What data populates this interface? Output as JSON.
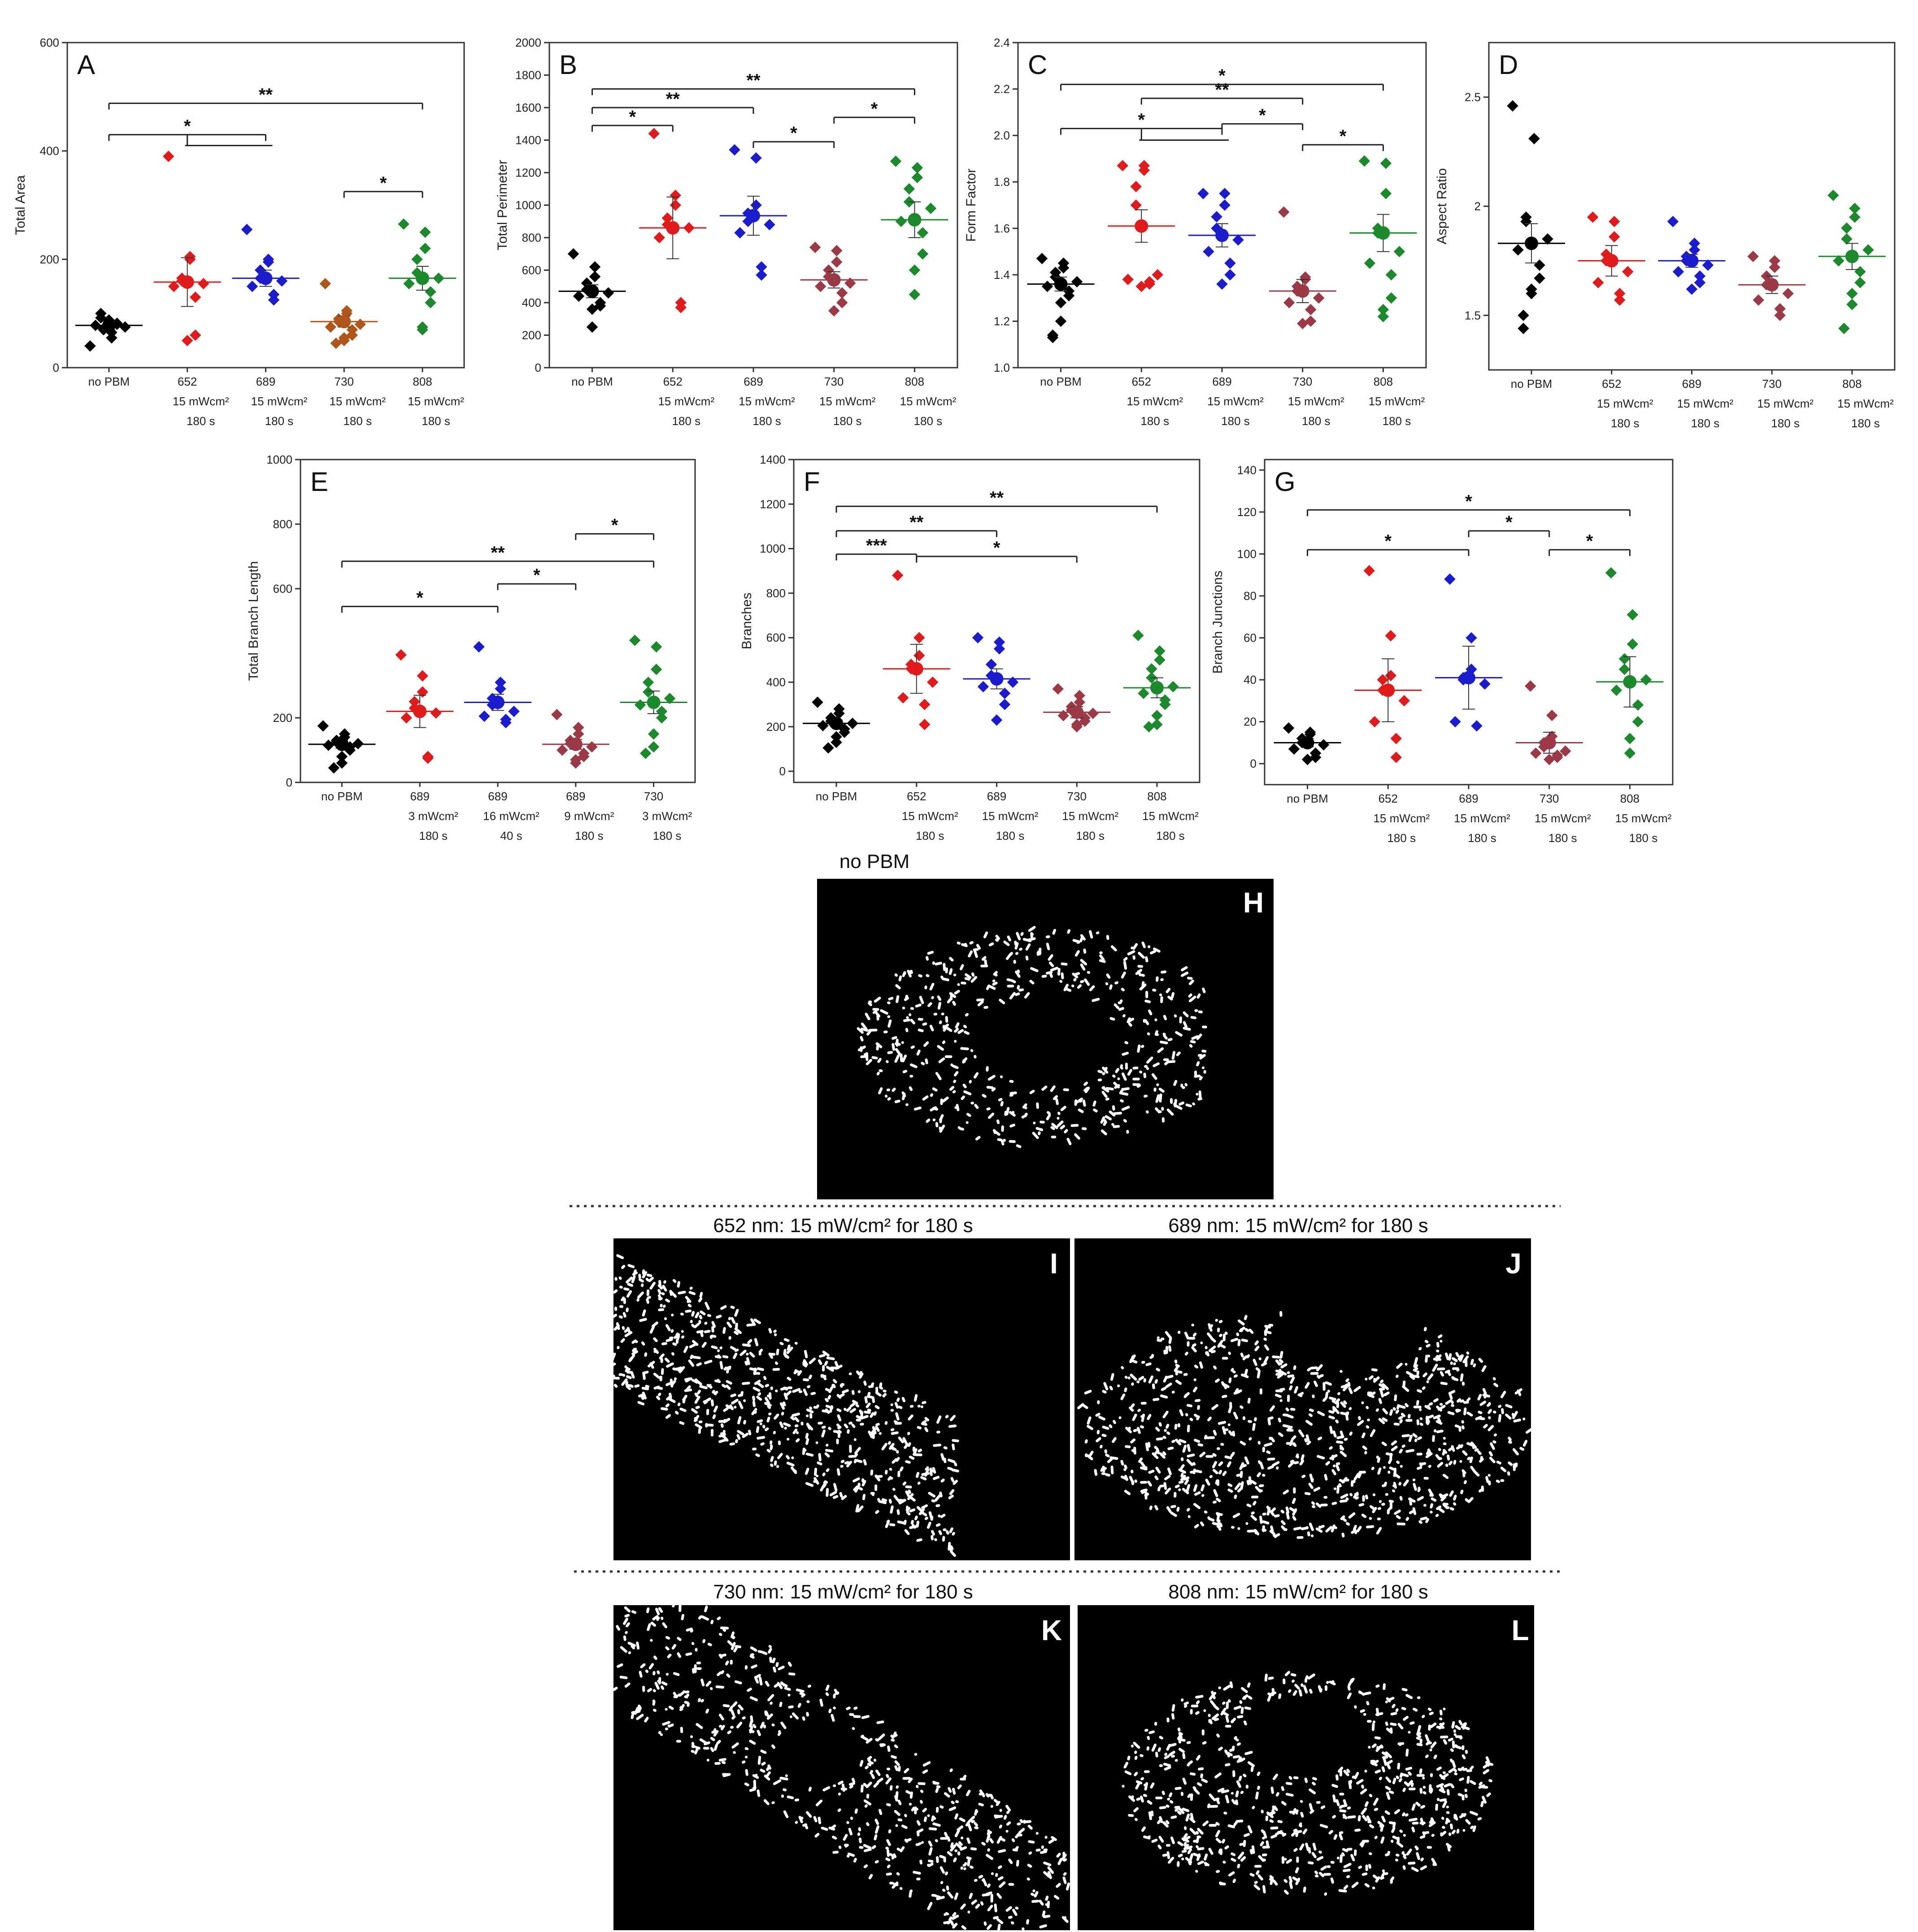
{
  "colors": {
    "black": "#000000",
    "red": "#e11b1b",
    "blue": "#1c1ccf",
    "brown": "#b1561b",
    "maroon": "#9b3a46",
    "green": "#1c8a2c"
  },
  "chart_data": [
    {
      "id": "A",
      "type": "scatter",
      "panel_label": "A",
      "ylabel": "Total Area",
      "ylim": [
        0,
        600
      ],
      "yticks": [
        0,
        200,
        400,
        600
      ],
      "categories": [
        [
          "no PBM"
        ],
        [
          "652",
          "15 mWcm²",
          "180 s"
        ],
        [
          "689",
          "15 mWcm²",
          "180 s"
        ],
        [
          "730",
          "15 mWcm²",
          "180 s"
        ],
        [
          "808",
          "15 mWcm²",
          "180 s"
        ]
      ],
      "series": [
        {
          "color_key": "black",
          "mean": 78,
          "sem": 8,
          "points": [
            40,
            55,
            65,
            70,
            72,
            75,
            78,
            80,
            82,
            85,
            88,
            92,
            100
          ]
        },
        {
          "color_key": "red",
          "mean": 158,
          "sem": 45,
          "points": [
            390,
            205,
            200,
            165,
            160,
            155,
            150,
            130,
            60,
            50
          ]
        },
        {
          "color_key": "blue",
          "mean": 165,
          "sem": 15,
          "points": [
            255,
            200,
            195,
            180,
            165,
            160,
            150,
            135,
            125
          ]
        },
        {
          "color_key": "brown",
          "mean": 85,
          "sem": 10,
          "points": [
            155,
            105,
            100,
            90,
            85,
            80,
            75,
            70,
            60,
            55,
            50,
            45
          ]
        },
        {
          "color_key": "green",
          "mean": 165,
          "sem": 22,
          "points": [
            265,
            250,
            220,
            200,
            175,
            165,
            155,
            140,
            120,
            75,
            70
          ]
        }
      ],
      "significance": [
        {
          "from": 0,
          "to": 4,
          "label": "**",
          "y": 488
        },
        {
          "from": 0,
          "to": 2,
          "label": "*",
          "y": 430,
          "bracket_to": [
            1,
            2
          ],
          "y2": 410
        },
        {
          "from": 3,
          "to": 4,
          "label": "*",
          "y": 325
        }
      ]
    },
    {
      "id": "B",
      "type": "scatter",
      "panel_label": "B",
      "ylabel": "Total Perimeter",
      "ylim": [
        0,
        2000
      ],
      "yticks": [
        0,
        200,
        400,
        600,
        800,
        1000,
        1200,
        1400,
        1600,
        1800,
        2000
      ],
      "categories": [
        [
          "no PBM"
        ],
        [
          "652",
          "15 mWcm²",
          "180 s"
        ],
        [
          "689",
          "15 mWcm²",
          "180 s"
        ],
        [
          "730",
          "15 mWcm²",
          "180 s"
        ],
        [
          "808",
          "15 mWcm²",
          "180 s"
        ]
      ],
      "series": [
        {
          "color_key": "black",
          "mean": 470,
          "sem": 40,
          "points": [
            700,
            620,
            560,
            520,
            480,
            460,
            440,
            400,
            380,
            360,
            250
          ]
        },
        {
          "color_key": "red",
          "mean": 860,
          "sem": 190,
          "points": [
            1440,
            1060,
            1000,
            920,
            880,
            860,
            800,
            400,
            370
          ]
        },
        {
          "color_key": "blue",
          "mean": 935,
          "sem": 120,
          "points": [
            1340,
            1290,
            1000,
            950,
            900,
            880,
            830,
            620,
            570
          ]
        },
        {
          "color_key": "maroon",
          "mean": 540,
          "sem": 50,
          "points": [
            740,
            720,
            650,
            600,
            560,
            520,
            500,
            460,
            400,
            350
          ]
        },
        {
          "color_key": "green",
          "mean": 910,
          "sem": 110,
          "points": [
            1270,
            1230,
            1170,
            1100,
            1020,
            980,
            900,
            830,
            700,
            600,
            450
          ]
        }
      ],
      "significance": [
        {
          "from": 0,
          "to": 4,
          "label": "**",
          "y": 1715
        },
        {
          "from": 0,
          "to": 2,
          "label": "**",
          "y": 1600
        },
        {
          "from": 0,
          "to": 1,
          "label": "*",
          "y": 1490
        },
        {
          "from": 2,
          "to": 3,
          "label": "*",
          "y": 1390
        },
        {
          "from": 3,
          "to": 4,
          "label": "*",
          "y": 1540
        }
      ]
    },
    {
      "id": "C",
      "type": "scatter",
      "panel_label": "C",
      "ylabel": "Form Factor",
      "ylim": [
        1.0,
        2.4
      ],
      "yticks": [
        1.0,
        1.2,
        1.4,
        1.6,
        1.8,
        2.0,
        2.2,
        2.4
      ],
      "categories": [
        [
          "no PBM"
        ],
        [
          "652",
          "15 mWcm²",
          "180 s"
        ],
        [
          "689",
          "15 mWcm²",
          "180 s"
        ],
        [
          "730",
          "15 mWcm²",
          "180 s"
        ],
        [
          "808",
          "15 mWcm²",
          "180 s"
        ]
      ],
      "series": [
        {
          "color_key": "black",
          "mean": 1.36,
          "sem": 0.03,
          "points": [
            1.47,
            1.45,
            1.43,
            1.41,
            1.39,
            1.37,
            1.35,
            1.33,
            1.31,
            1.28,
            1.2,
            1.14,
            1.13
          ]
        },
        {
          "color_key": "red",
          "mean": 1.61,
          "sem": 0.07,
          "points": [
            1.87,
            1.87,
            1.85,
            1.78,
            1.7,
            1.4,
            1.38,
            1.37,
            1.36,
            1.35
          ]
        },
        {
          "color_key": "blue",
          "mean": 1.57,
          "sem": 0.05,
          "points": [
            1.75,
            1.75,
            1.7,
            1.65,
            1.6,
            1.55,
            1.5,
            1.45,
            1.4,
            1.36
          ]
        },
        {
          "color_key": "maroon",
          "mean": 1.33,
          "sem": 0.05,
          "points": [
            1.67,
            1.39,
            1.38,
            1.35,
            1.33,
            1.3,
            1.28,
            1.25,
            1.2,
            1.19
          ]
        },
        {
          "color_key": "green",
          "mean": 1.58,
          "sem": 0.08,
          "points": [
            1.89,
            1.88,
            1.75,
            1.6,
            1.58,
            1.5,
            1.45,
            1.4,
            1.3,
            1.25,
            1.22
          ]
        }
      ],
      "significance": [
        {
          "from": 0,
          "to": 4,
          "label": "*",
          "y": 2.22
        },
        {
          "from": 1,
          "to": 3,
          "label": "**",
          "y": 2.16
        },
        {
          "from": 0,
          "to": 2,
          "label": "*",
          "y": 2.03,
          "bracket_to": [
            1,
            2
          ],
          "y2": 1.98
        },
        {
          "from": 2,
          "to": 3,
          "label": "*",
          "y": 2.05
        },
        {
          "from": 3,
          "to": 4,
          "label": "*",
          "y": 1.96
        }
      ]
    },
    {
      "id": "D",
      "type": "scatter",
      "panel_label": "D",
      "ylabel": "Aspect Ratio",
      "ylim": [
        1.25,
        2.75
      ],
      "yticks": [
        1.5,
        2.0,
        2.5
      ],
      "categories": [
        [
          "no PBM"
        ],
        [
          "652",
          "15 mWcm²",
          "180 s"
        ],
        [
          "689",
          "15 mWcm²",
          "180 s"
        ],
        [
          "730",
          "15 mWcm²",
          "180 s"
        ],
        [
          "808",
          "15 mWcm²",
          "180 s"
        ]
      ],
      "series": [
        {
          "color_key": "black",
          "mean": 1.83,
          "sem": 0.09,
          "points": [
            2.46,
            2.31,
            2.31,
            1.95,
            1.93,
            1.85,
            1.8,
            1.73,
            1.67,
            1.62,
            1.6,
            1.5,
            1.44
          ]
        },
        {
          "color_key": "red",
          "mean": 1.75,
          "sem": 0.07,
          "points": [
            1.95,
            1.93,
            1.86,
            1.78,
            1.75,
            1.7,
            1.65,
            1.6,
            1.57
          ]
        },
        {
          "color_key": "blue",
          "mean": 1.75,
          "sem": 0.03,
          "points": [
            1.93,
            1.83,
            1.8,
            1.77,
            1.75,
            1.73,
            1.7,
            1.68,
            1.65,
            1.62
          ]
        },
        {
          "color_key": "maroon",
          "mean": 1.64,
          "sem": 0.04,
          "points": [
            1.77,
            1.75,
            1.72,
            1.68,
            1.64,
            1.6,
            1.57,
            1.53,
            1.5
          ]
        },
        {
          "color_key": "green",
          "mean": 1.77,
          "sem": 0.06,
          "points": [
            2.05,
            1.99,
            1.95,
            1.9,
            1.85,
            1.8,
            1.75,
            1.7,
            1.65,
            1.6,
            1.55,
            1.44
          ]
        }
      ],
      "significance": []
    },
    {
      "id": "E",
      "type": "scatter",
      "panel_label": "E",
      "ylabel": "Total Branch Length",
      "ylim": [
        0,
        1000
      ],
      "yticks": [
        0,
        200,
        600,
        800,
        1000
      ],
      "categories": [
        [
          "no PBM"
        ],
        [
          "689",
          "3 mWcm²",
          "180 s"
        ],
        [
          "689",
          "16 mWcm²",
          "40 s"
        ],
        [
          "689",
          "9 mWcm²",
          "180 s"
        ],
        [
          "730",
          "3 mWcm²",
          "180 s"
        ]
      ],
      "series": [
        {
          "color_key": "black",
          "mean": 118,
          "sem": 12,
          "points": [
            175,
            150,
            140,
            130,
            125,
            120,
            115,
            110,
            100,
            80,
            60,
            45
          ]
        },
        {
          "color_key": "red",
          "mean": 220,
          "sem": 50,
          "points": [
            395,
            330,
            280,
            250,
            230,
            215,
            200,
            80,
            75
          ]
        },
        {
          "color_key": "blue",
          "mean": 248,
          "sem": 25,
          "points": [
            420,
            310,
            290,
            260,
            240,
            220,
            205,
            195,
            185
          ]
        },
        {
          "color_key": "maroon",
          "mean": 118,
          "sem": 15,
          "points": [
            210,
            170,
            150,
            130,
            120,
            110,
            100,
            90,
            80,
            70,
            60
          ]
        },
        {
          "color_key": "green",
          "mean": 248,
          "sem": 35,
          "points": [
            440,
            420,
            350,
            310,
            280,
            260,
            240,
            220,
            200,
            150,
            110,
            90
          ]
        }
      ],
      "significance": [
        {
          "from": 3,
          "to": 4,
          "label": "*",
          "y": 770
        },
        {
          "from": 0,
          "to": 4,
          "label": "**",
          "y": 685
        },
        {
          "from": 2,
          "to": 3,
          "label": "*",
          "y": 615
        },
        {
          "from": 0,
          "to": 2,
          "label": "*",
          "y": 545
        }
      ]
    },
    {
      "id": "F",
      "type": "scatter",
      "panel_label": "F",
      "ylabel": "Branches",
      "ylim": [
        -50,
        1400
      ],
      "yticks": [
        0,
        200,
        400,
        600,
        800,
        1000,
        1200,
        1400
      ],
      "categories": [
        [
          "no PBM"
        ],
        [
          "652",
          "15 mWcm²",
          "180 s"
        ],
        [
          "689",
          "15 mWcm²",
          "180 s"
        ],
        [
          "730",
          "15 mWcm²",
          "180 s"
        ],
        [
          "808",
          "15 mWcm²",
          "180 s"
        ]
      ],
      "series": [
        {
          "color_key": "black",
          "mean": 215,
          "sem": 15,
          "points": [
            310,
            280,
            260,
            240,
            225,
            215,
            205,
            190,
            175,
            155,
            130,
            105
          ]
        },
        {
          "color_key": "red",
          "mean": 460,
          "sem": 110,
          "points": [
            880,
            600,
            520,
            480,
            460,
            400,
            330,
            300,
            210
          ]
        },
        {
          "color_key": "blue",
          "mean": 415,
          "sem": 45,
          "points": [
            600,
            580,
            550,
            480,
            430,
            400,
            380,
            350,
            300,
            230
          ]
        },
        {
          "color_key": "maroon",
          "mean": 265,
          "sem": 25,
          "points": [
            370,
            340,
            310,
            290,
            275,
            260,
            250,
            240,
            225,
            210,
            200
          ]
        },
        {
          "color_key": "green",
          "mean": 375,
          "sem": 45,
          "points": [
            610,
            540,
            500,
            460,
            420,
            380,
            350,
            320,
            300,
            250,
            210,
            200
          ]
        }
      ],
      "significance": [
        {
          "from": 0,
          "to": 4,
          "label": "**",
          "y": 1190
        },
        {
          "from": 0,
          "to": 2,
          "label": "**",
          "y": 1080
        },
        {
          "from": 0,
          "to": 1,
          "label": "***",
          "y": 975
        },
        {
          "from": 1,
          "to": 3,
          "label": "*",
          "y": 965
        }
      ]
    },
    {
      "id": "G",
      "type": "scatter",
      "panel_label": "G",
      "ylabel": "Branch Junctions",
      "ylim": [
        -10,
        145
      ],
      "yticks": [
        0,
        20,
        40,
        60,
        80,
        100,
        120,
        140
      ],
      "categories": [
        [
          "no PBM"
        ],
        [
          "652",
          "15 mWcm²",
          "180 s"
        ],
        [
          "689",
          "15 mWcm²",
          "180 s"
        ],
        [
          "730",
          "15 mWcm²",
          "180 s"
        ],
        [
          "808",
          "15 mWcm²",
          "180 s"
        ]
      ],
      "series": [
        {
          "color_key": "black",
          "mean": 10,
          "sem": 2,
          "points": [
            17,
            15,
            14,
            12,
            10,
            9,
            7,
            5,
            3,
            2
          ]
        },
        {
          "color_key": "red",
          "mean": 35,
          "sem": 15,
          "points": [
            92,
            61,
            42,
            40,
            35,
            30,
            20,
            12,
            3
          ]
        },
        {
          "color_key": "blue",
          "mean": 41,
          "sem": 15,
          "points": [
            88,
            60,
            45,
            41,
            40,
            38,
            20,
            18
          ]
        },
        {
          "color_key": "maroon",
          "mean": 10,
          "sem": 5,
          "points": [
            37,
            23,
            13,
            10,
            8,
            6,
            5,
            4,
            3,
            2
          ]
        },
        {
          "color_key": "green",
          "mean": 39,
          "sem": 12,
          "points": [
            91,
            71,
            57,
            50,
            45,
            40,
            35,
            28,
            20,
            12,
            5
          ]
        }
      ],
      "significance": [
        {
          "from": 0,
          "to": 4,
          "label": "*",
          "y": 121
        },
        {
          "from": 2,
          "to": 3,
          "label": "*",
          "y": 111
        },
        {
          "from": 0,
          "to": 2,
          "label": "*",
          "y": 102
        },
        {
          "from": 3,
          "to": 4,
          "label": "*",
          "y": 102
        }
      ]
    }
  ],
  "micrographs": [
    {
      "id": "H",
      "label": "H",
      "title": "no PBM"
    },
    {
      "id": "I",
      "label": "I",
      "title": "652 nm: 15 mW/cm² for 180 s"
    },
    {
      "id": "J",
      "label": "J",
      "title": "689 nm: 15 mW/cm² for 180 s"
    },
    {
      "id": "K",
      "label": "K",
      "title": "730 nm: 15 mW/cm² for 180 s"
    },
    {
      "id": "L",
      "label": "L",
      "title": "808 nm: 15 mW/cm² for 180 s"
    }
  ]
}
